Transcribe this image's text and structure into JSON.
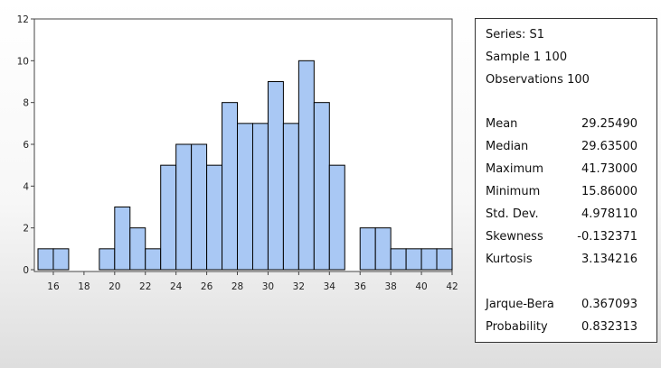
{
  "chart_data": {
    "type": "bar",
    "title": "",
    "xlabel": "",
    "ylabel": "",
    "bin_width": 1,
    "x": [
      15,
      16,
      17,
      18,
      19,
      20,
      21,
      22,
      23,
      24,
      25,
      26,
      27,
      28,
      29,
      30,
      31,
      32,
      33,
      34,
      35,
      36,
      37,
      38,
      39,
      40,
      41
    ],
    "values": [
      1,
      1,
      0,
      0,
      1,
      3,
      2,
      1,
      5,
      6,
      6,
      5,
      8,
      7,
      7,
      9,
      7,
      10,
      8,
      5,
      0,
      2,
      2,
      1,
      1,
      1,
      1
    ],
    "xlim": [
      15,
      42
    ],
    "ylim": [
      0,
      12
    ],
    "x_ticks": [
      16,
      18,
      20,
      22,
      24,
      26,
      28,
      30,
      32,
      34,
      36,
      38,
      40,
      42
    ],
    "y_ticks": [
      0,
      2,
      4,
      6,
      8,
      10,
      12
    ],
    "bar_color": "#a9c8f4",
    "grid": false,
    "legend": "none"
  },
  "stats": {
    "series": "Series: S1",
    "sample": "Sample 1 100",
    "observations": "Observations 100",
    "rows": [
      {
        "label": "Mean",
        "value": "29.25490"
      },
      {
        "label": "Median",
        "value": "29.63500"
      },
      {
        "label": "Maximum",
        "value": "41.73000"
      },
      {
        "label": "Minimum",
        "value": "15.86000"
      },
      {
        "label": "Std. Dev.",
        "value": "4.978110"
      },
      {
        "label": "Skewness",
        "value": "-0.132371"
      },
      {
        "label": "Kurtosis",
        "value": "3.134216"
      },
      {
        "label": "Jarque-Bera",
        "value": "0.367093"
      },
      {
        "label": "Probability",
        "value": "0.832313"
      }
    ]
  }
}
